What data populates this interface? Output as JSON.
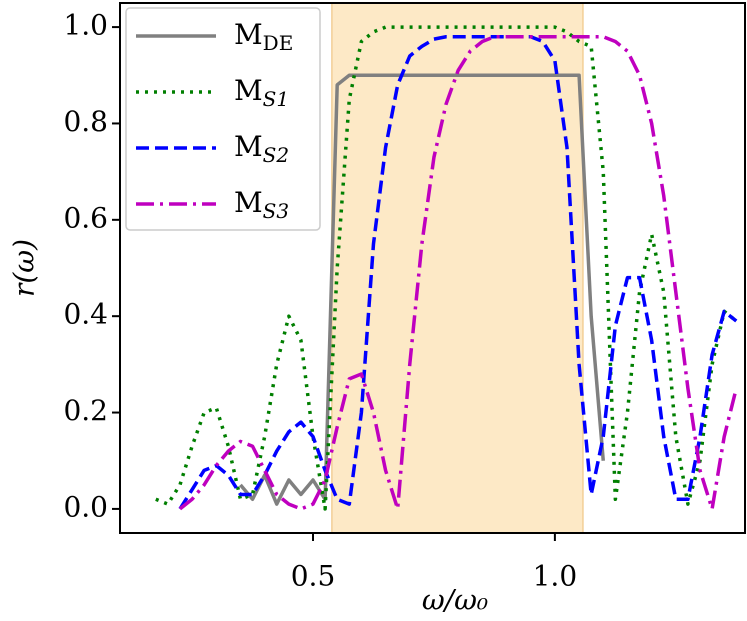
{
  "chart_data": {
    "type": "line",
    "xlabel": "ω/ω₀",
    "ylabel": "r(ω)",
    "xlim": [
      0.101,
      1.393
    ],
    "ylim": [
      -0.05,
      1.05
    ],
    "xticks": [
      0.5,
      {
        "value": 1,
        "label": "1.0"
      }
    ],
    "yticks": [
      {
        "value": 0,
        "label": "0.0"
      },
      0.2,
      0.4,
      0.6,
      0.8,
      {
        "value": 1,
        "label": "1.0"
      }
    ],
    "span": [
      0.539,
      1.058
    ],
    "span_color": "#fde9c6",
    "legend": "upper left",
    "x": [
      0.15,
      0.175,
      0.2,
      0.225,
      0.25,
      0.275,
      0.3,
      0.325,
      0.35,
      0.375,
      0.4,
      0.425,
      0.45,
      0.475,
      0.5,
      0.525,
      0.55,
      0.575,
      0.6,
      0.625,
      0.65,
      0.675,
      0.7,
      0.725,
      0.75,
      0.775,
      0.8,
      0.825,
      0.85,
      0.875,
      0.9,
      0.925,
      0.95,
      0.975,
      1.0,
      1.025,
      1.05,
      1.075,
      1.1,
      1.125,
      1.15,
      1.175,
      1.2,
      1.225,
      1.25,
      1.275,
      1.3,
      1.325,
      1.35,
      1.375
    ],
    "series": [
      {
        "name": "M",
        "subscript": "DE",
        "color": "#808080",
        "style": "solid",
        "values": [
          null,
          null,
          null,
          null,
          null,
          null,
          null,
          null,
          0.05,
          0.02,
          0.07,
          0.01,
          0.06,
          0.03,
          0.06,
          0.02,
          0.88,
          0.9,
          0.9,
          0.9,
          0.9,
          0.9,
          0.9,
          0.9,
          0.9,
          0.9,
          0.9,
          0.9,
          0.9,
          0.9,
          0.9,
          0.9,
          0.9,
          0.9,
          0.9,
          0.9,
          0.9,
          0.4,
          0.1,
          null,
          null,
          null,
          null,
          null,
          null,
          null,
          null,
          null,
          null,
          null
        ]
      },
      {
        "name": "M",
        "subscript": "S1",
        "color": "#007f00",
        "style": "dotted",
        "values": [
          null,
          0.02,
          0.01,
          0.05,
          0.13,
          0.2,
          0.21,
          0.13,
          0.02,
          0.03,
          0.15,
          0.3,
          0.4,
          0.35,
          0.15,
          0.0,
          0.5,
          0.85,
          0.97,
          0.99,
          1.0,
          1.0,
          1.0,
          1.0,
          1.0,
          1.0,
          1.0,
          1.0,
          1.0,
          1.0,
          1.0,
          1.0,
          1.0,
          1.0,
          1.0,
          0.99,
          0.97,
          0.96,
          0.7,
          0.02,
          0.2,
          0.45,
          0.57,
          0.45,
          0.15,
          0.01,
          0.1,
          0.3,
          0.41,
          0.39
        ]
      },
      {
        "name": "M",
        "subscript": "S2",
        "color": "#0000ff",
        "style": "dashed",
        "values": [
          null,
          null,
          null,
          0.0,
          0.04,
          0.08,
          0.09,
          0.07,
          0.03,
          0.03,
          0.07,
          0.12,
          0.16,
          0.18,
          0.15,
          0.08,
          0.02,
          0.01,
          0.2,
          0.55,
          0.75,
          0.88,
          0.94,
          0.96,
          0.975,
          0.98,
          0.98,
          0.98,
          0.98,
          0.98,
          0.98,
          0.98,
          0.98,
          0.97,
          0.93,
          0.75,
          0.3,
          0.03,
          0.15,
          0.38,
          0.48,
          0.48,
          0.35,
          0.15,
          0.02,
          0.02,
          0.15,
          0.32,
          0.41,
          0.39
        ]
      },
      {
        "name": "M",
        "subscript": "S3",
        "color": "#bf00bf",
        "style": "dashdot",
        "values": [
          null,
          null,
          null,
          0.0,
          0.02,
          0.05,
          0.09,
          0.12,
          0.14,
          0.13,
          0.08,
          0.03,
          0.01,
          0.0,
          0.01,
          0.06,
          0.17,
          0.27,
          0.28,
          0.2,
          0.08,
          0.0,
          0.3,
          0.55,
          0.73,
          0.84,
          0.91,
          0.95,
          0.97,
          0.98,
          0.98,
          0.98,
          0.98,
          0.98,
          0.98,
          0.98,
          0.98,
          0.98,
          0.98,
          0.97,
          0.95,
          0.9,
          0.8,
          0.65,
          0.45,
          0.25,
          0.08,
          0.0,
          0.15,
          0.25
        ]
      }
    ]
  }
}
